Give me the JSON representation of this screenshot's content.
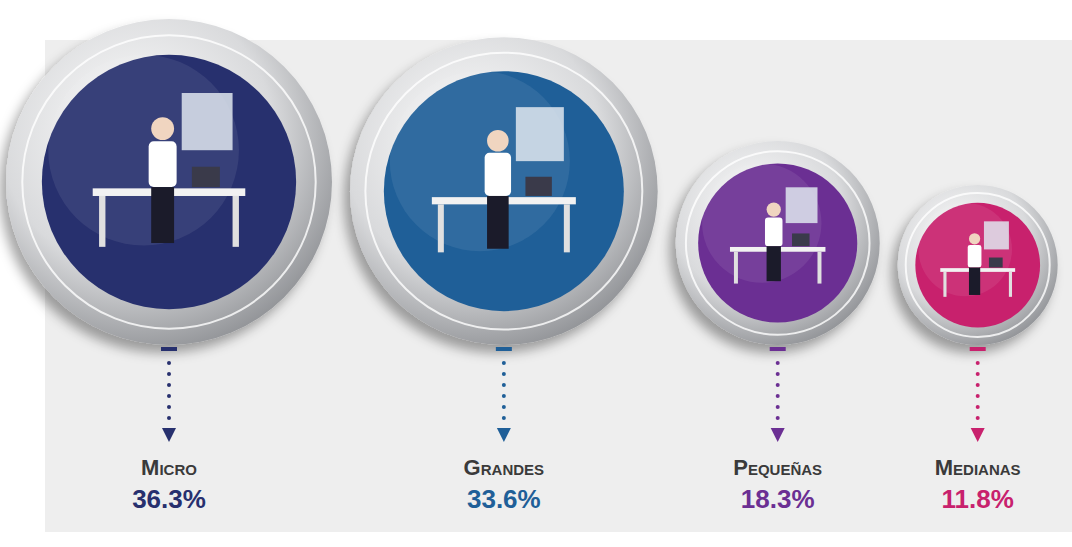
{
  "chart_data": {
    "type": "bubble",
    "categories": [
      "Micro",
      "Grandes",
      "Pequeñas",
      "Medianas"
    ],
    "values": [
      36.3,
      33.6,
      18.3,
      11.8
    ],
    "value_labels": [
      "36.3%",
      "33.6%",
      "18.3%",
      "11.8%"
    ],
    "colors": [
      "#27306e",
      "#1f5f98",
      "#6b2f93",
      "#c8216d"
    ],
    "data_labels": true
  }
}
